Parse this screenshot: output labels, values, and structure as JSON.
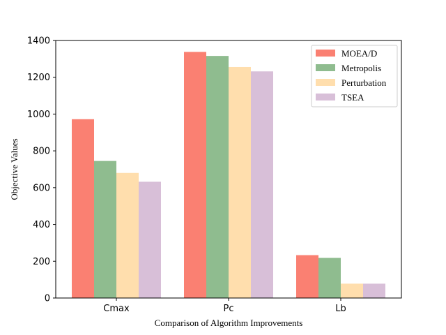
{
  "chart_data": {
    "type": "bar",
    "categories": [
      "Cmax",
      "Pc",
      "Lb"
    ],
    "series": [
      {
        "name": "MOEA/D",
        "color": "#fa8072",
        "values": [
          972,
          1338,
          233
        ]
      },
      {
        "name": "Metropolis",
        "color": "#8fbc8f",
        "values": [
          745,
          1316,
          218
        ]
      },
      {
        "name": "Perturbation",
        "color": "#ffdead",
        "values": [
          680,
          1256,
          78
        ]
      },
      {
        "name": "TSEA",
        "color": "#d8bfd8",
        "values": [
          632,
          1232,
          78
        ]
      }
    ],
    "xlabel": "Comparison of Algorithm Improvements",
    "ylabel": "Objective Values",
    "ylim": [
      0,
      1400
    ],
    "yticks": [
      0,
      200,
      400,
      600,
      800,
      1000,
      1200,
      1400
    ],
    "legend": "top-right",
    "grid": false
  }
}
